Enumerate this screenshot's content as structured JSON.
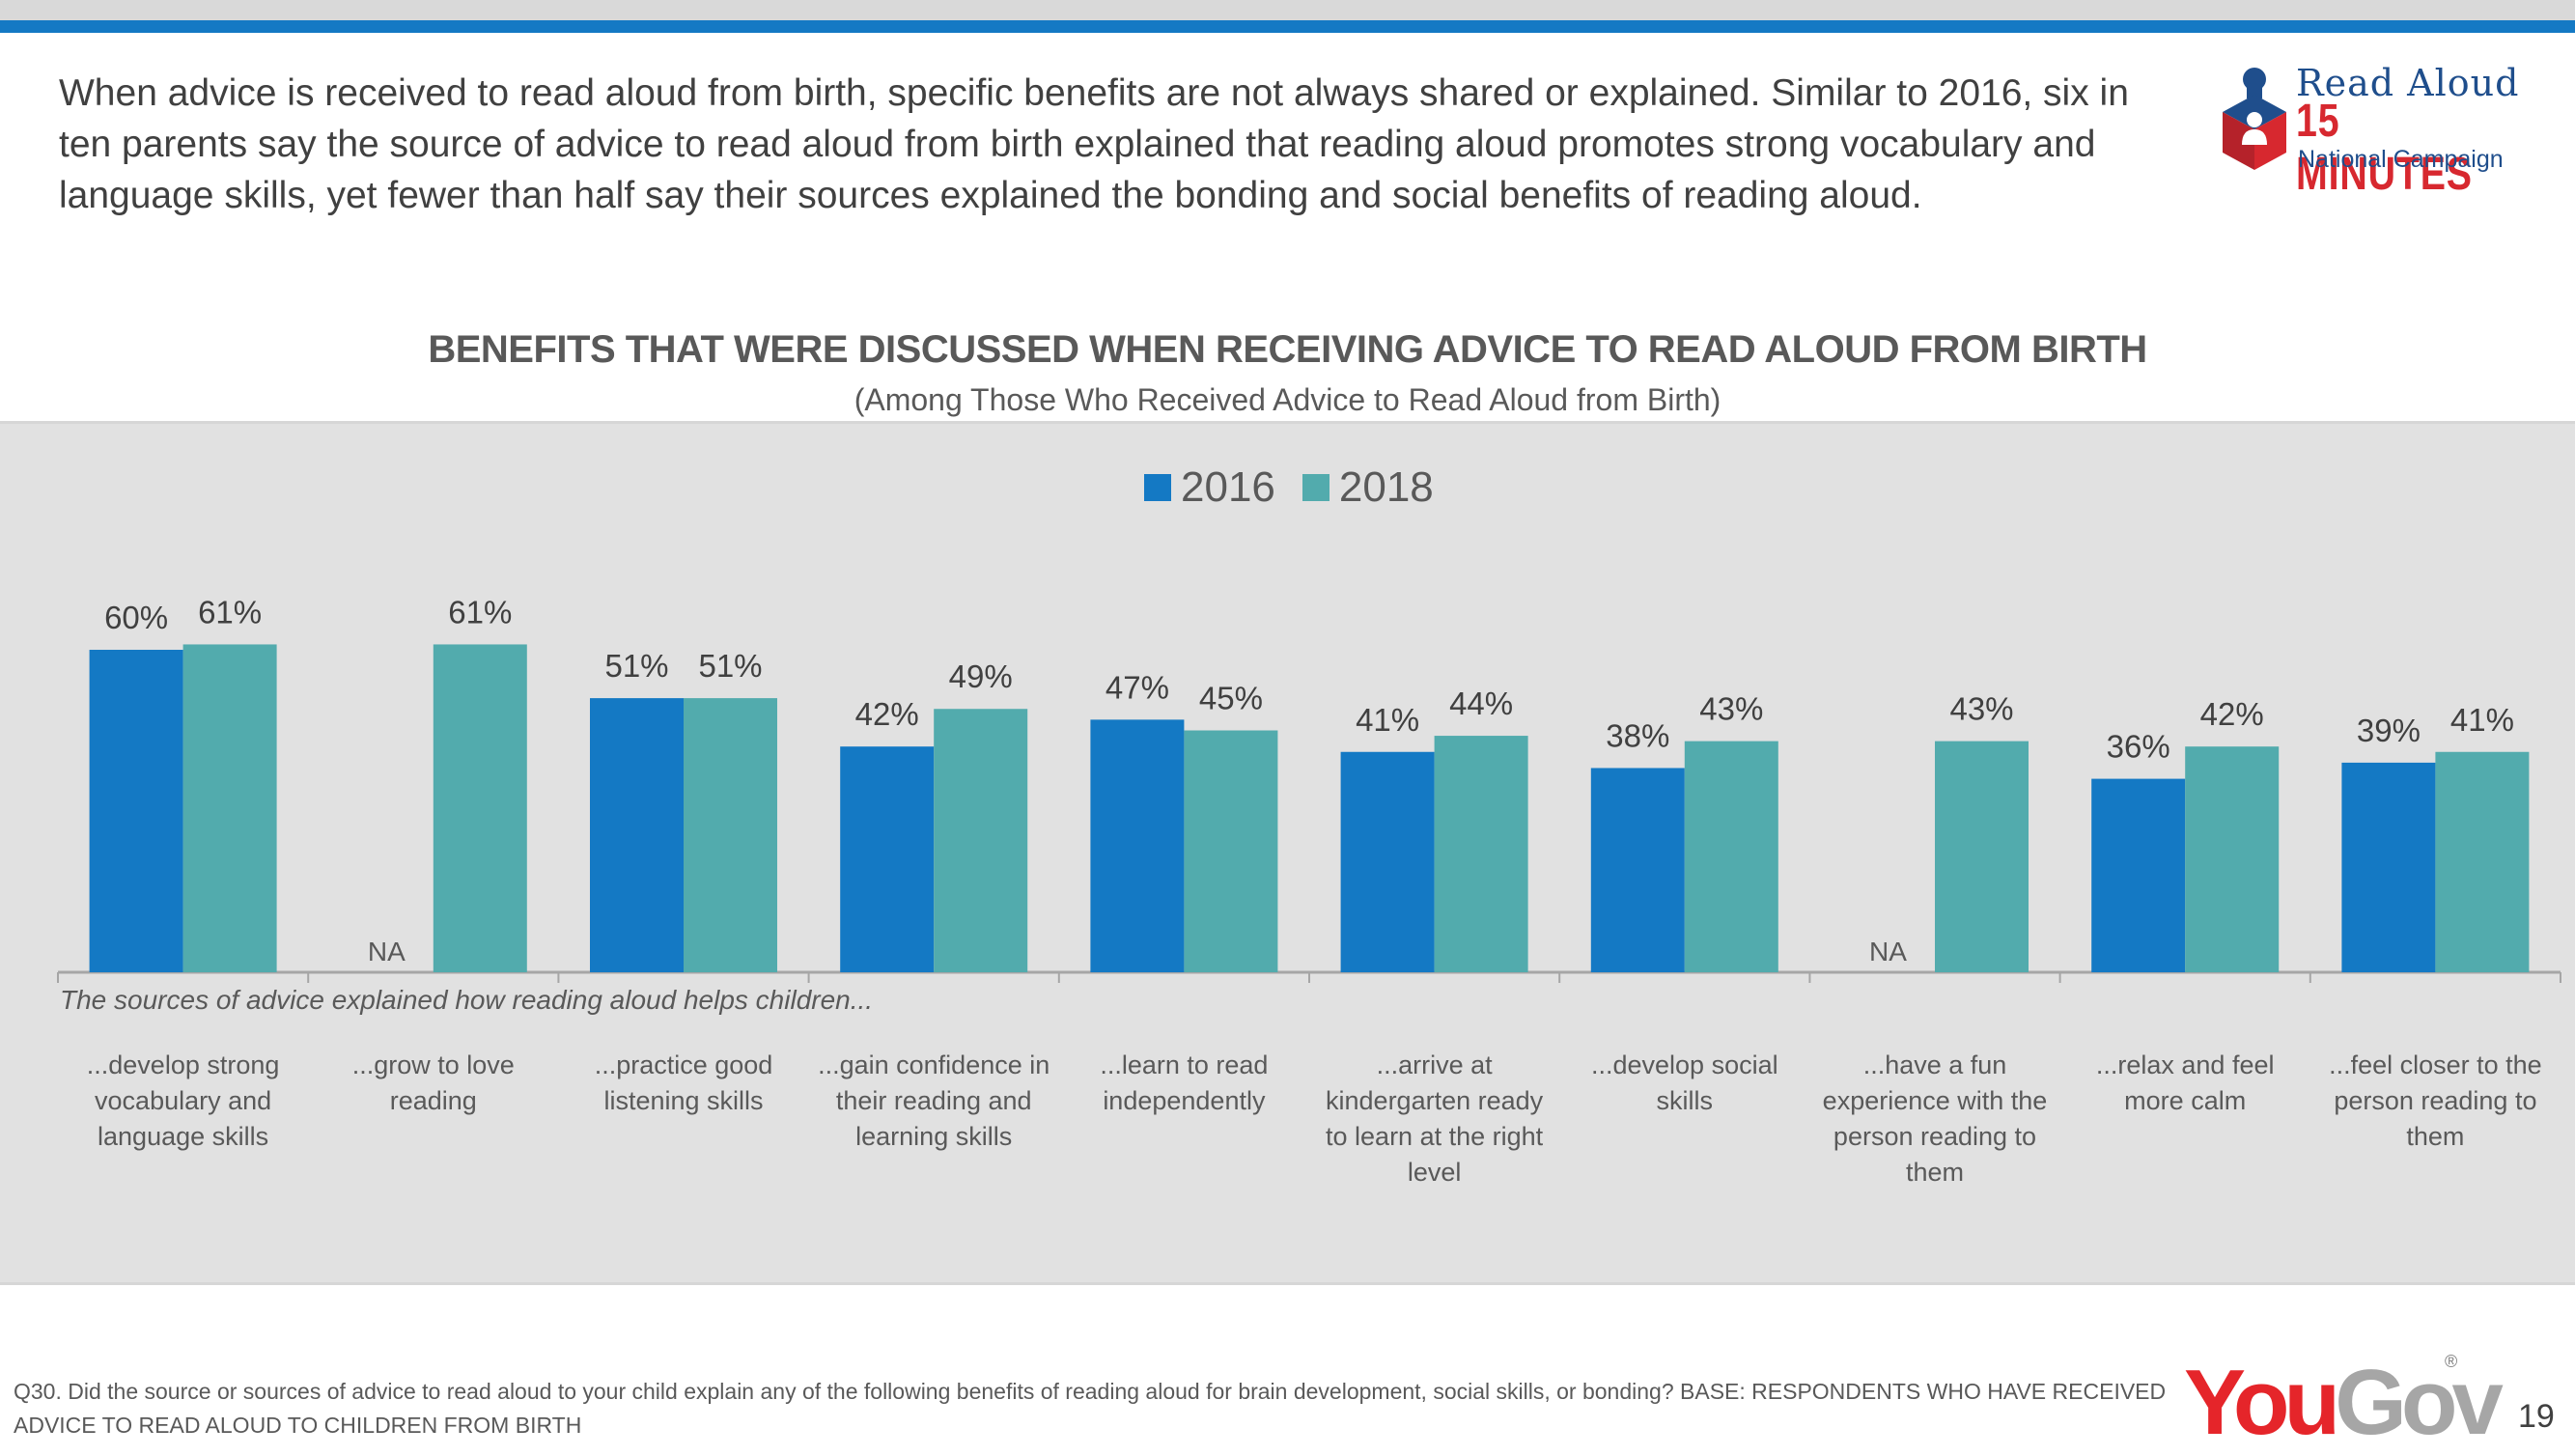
{
  "header": {
    "headline": "When advice is received to read aloud from birth, specific benefits are not always shared or explained. Similar to 2016, six in ten parents say the source of advice to read aloud from birth explained that reading aloud promotes strong vocabulary and language skills, yet fewer than half say their sources explained the bonding and social benefits of reading aloud."
  },
  "logo": {
    "line1": "Read Aloud",
    "line2": "15 MINUTES",
    "line3": "National Campaign"
  },
  "colors": {
    "series_2016": "#1479c4",
    "series_2018": "#52abad",
    "accent_bar": "#1479c4"
  },
  "chart_data": {
    "type": "bar",
    "title": "BENEFITS THAT WERE DISCUSSED WHEN RECEIVING ADVICE TO READ ALOUD FROM BIRTH",
    "subtitle": "(Among Those Who Received Advice to Read Aloud from Birth)",
    "xlabel": "The sources of advice explained how reading aloud helps children...",
    "ylabel": "",
    "ylim": [
      0,
      70
    ],
    "grid": false,
    "legend_position": "top-center",
    "categories": [
      "...develop strong vocabulary and language skills",
      "...grow to love reading",
      "...practice good listening skills",
      "...gain confidence in their reading and learning skills",
      "...learn to read independently",
      "...arrive at kindergarten ready to learn at the right level",
      "...develop social skills",
      "...have a fun experience with the person reading to them",
      "...relax and feel more calm",
      "...feel closer to the person reading to them"
    ],
    "series": [
      {
        "name": "2016",
        "values": [
          60,
          null,
          51,
          42,
          47,
          41,
          38,
          null,
          36,
          39
        ]
      },
      {
        "name": "2018",
        "values": [
          61,
          61,
          51,
          49,
          45,
          44,
          43,
          43,
          42,
          41
        ]
      }
    ],
    "missing_label": "NA",
    "value_suffix": "%"
  },
  "footer": {
    "question": "Q30. Did the source or sources of advice to read aloud to your child explain any of the following benefits of reading aloud for brain development, social skills, or bonding?  BASE:  RESPONDENTS WHO HAVE RECEIVED ADVICE TO READ ALOUD TO CHILDREN FROM BIRTH",
    "brand_you": "You",
    "brand_gov": "Gov",
    "brand_reg": "®",
    "page_number": "19"
  }
}
